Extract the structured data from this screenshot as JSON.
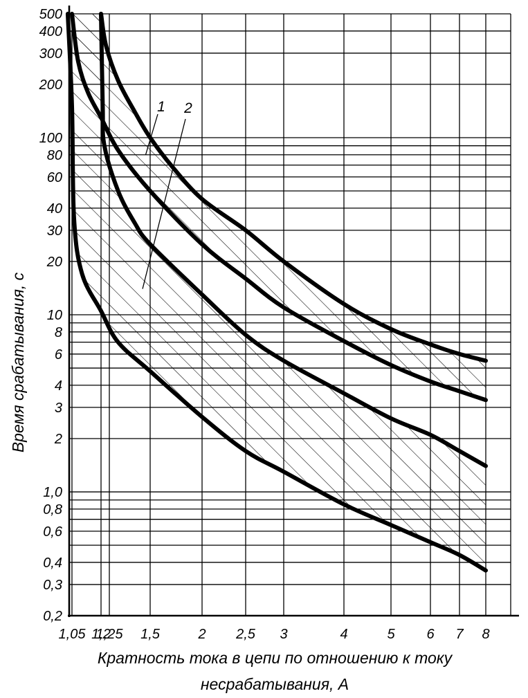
{
  "chart_data": {
    "type": "line",
    "title": "",
    "xlabel_lines": [
      "Кратность тока в цепи по отношению к току",
      "несрабатывания, А"
    ],
    "ylabel": "Время срабатывания, с",
    "x_scale": "log",
    "y_scale": "log",
    "xlim": [
      1.0,
      9.0
    ],
    "ylim": [
      0.2,
      500
    ],
    "grid": true,
    "legend": "none",
    "x_ticks": [
      {
        "value": 1.05,
        "label": "1,05"
      },
      {
        "value": 1.2,
        "label": "1,2"
      },
      {
        "value": 1.25,
        "label": "1,25"
      },
      {
        "value": 1.5,
        "label": "1,5"
      },
      {
        "value": 2,
        "label": "2"
      },
      {
        "value": 2.5,
        "label": "2,5"
      },
      {
        "value": 3,
        "label": "3"
      },
      {
        "value": 4,
        "label": "4"
      },
      {
        "value": 5,
        "label": "5"
      },
      {
        "value": 6,
        "label": "6"
      },
      {
        "value": 7,
        "label": "7"
      },
      {
        "value": 8,
        "label": "8"
      }
    ],
    "x_grid": [
      1.05,
      1.2,
      1.25,
      1.5,
      2,
      2.5,
      3,
      4,
      5,
      6,
      7,
      8,
      9
    ],
    "y_ticks": [
      {
        "value": 0.2,
        "label": "0,2"
      },
      {
        "value": 0.3,
        "label": "0,3"
      },
      {
        "value": 0.4,
        "label": "0,4"
      },
      {
        "value": 0.6,
        "label": "0,6"
      },
      {
        "value": 0.8,
        "label": "0,8"
      },
      {
        "value": 1.0,
        "label": "1,0"
      },
      {
        "value": 2,
        "label": "2"
      },
      {
        "value": 3,
        "label": "3"
      },
      {
        "value": 4,
        "label": "4"
      },
      {
        "value": 6,
        "label": "6"
      },
      {
        "value": 8,
        "label": "8"
      },
      {
        "value": 10,
        "label": "10"
      },
      {
        "value": 20,
        "label": "20"
      },
      {
        "value": 30,
        "label": "30"
      },
      {
        "value": 40,
        "label": "40"
      },
      {
        "value": 60,
        "label": "60"
      },
      {
        "value": 80,
        "label": "80"
      },
      {
        "value": 100,
        "label": "100"
      },
      {
        "value": 200,
        "label": "200"
      },
      {
        "value": 300,
        "label": "300"
      },
      {
        "value": 400,
        "label": "400"
      },
      {
        "value": 500,
        "label": "500"
      }
    ],
    "y_grid": [
      0.3,
      0.4,
      0.5,
      0.6,
      0.7,
      0.8,
      0.9,
      1.0,
      2,
      3,
      4,
      5,
      6,
      7,
      8,
      9,
      10,
      20,
      30,
      40,
      50,
      60,
      70,
      80,
      90,
      100,
      200,
      300,
      400,
      500
    ],
    "bands": [
      {
        "name": "1",
        "upper": [
          [
            1.2,
            500
          ],
          [
            1.23,
            330
          ],
          [
            1.3,
            210
          ],
          [
            1.4,
            140
          ],
          [
            1.5,
            100
          ],
          [
            1.7,
            68
          ],
          [
            2.0,
            45
          ],
          [
            2.5,
            30
          ],
          [
            3.0,
            20
          ],
          [
            4.0,
            11.5
          ],
          [
            5.0,
            8.3
          ],
          [
            6.0,
            6.8
          ],
          [
            7.0,
            6.0
          ],
          [
            8.0,
            5.5
          ]
        ],
        "lower": [
          [
            1.05,
            500
          ],
          [
            1.08,
            270
          ],
          [
            1.13,
            180
          ],
          [
            1.2,
            130
          ],
          [
            1.3,
            85
          ],
          [
            1.5,
            50
          ],
          [
            2.0,
            25
          ],
          [
            2.5,
            16
          ],
          [
            3.0,
            11
          ],
          [
            4.0,
            7.1
          ],
          [
            5.0,
            5.2
          ],
          [
            6.0,
            4.2
          ],
          [
            7.0,
            3.7
          ],
          [
            8.0,
            3.3
          ]
        ]
      },
      {
        "name": "2",
        "upper": [
          [
            1.2,
            500
          ],
          [
            1.21,
            150
          ],
          [
            1.22,
            90
          ],
          [
            1.3,
            50
          ],
          [
            1.4,
            33
          ],
          [
            1.5,
            25
          ],
          [
            2.0,
            13
          ],
          [
            2.5,
            7.7
          ],
          [
            3.0,
            5.5
          ],
          [
            4.0,
            3.6
          ],
          [
            5.0,
            2.6
          ],
          [
            6.0,
            2.1
          ],
          [
            7.0,
            1.7
          ],
          [
            8.0,
            1.4
          ]
        ],
        "lower": [
          [
            1.03,
            500
          ],
          [
            1.05,
            150
          ],
          [
            1.06,
            35
          ],
          [
            1.1,
            17
          ],
          [
            1.2,
            10.5
          ],
          [
            1.3,
            7.0
          ],
          [
            1.5,
            4.8
          ],
          [
            2.0,
            2.65
          ],
          [
            2.5,
            1.7
          ],
          [
            3.0,
            1.3
          ],
          [
            4.0,
            0.85
          ],
          [
            5.0,
            0.65
          ],
          [
            6.0,
            0.52
          ],
          [
            7.0,
            0.44
          ],
          [
            8.0,
            0.36
          ]
        ]
      }
    ],
    "annotations": [
      {
        "text": "1",
        "target": [
          1.47,
          80
        ]
      },
      {
        "text": "2",
        "target": [
          1.45,
          14
        ]
      }
    ]
  }
}
